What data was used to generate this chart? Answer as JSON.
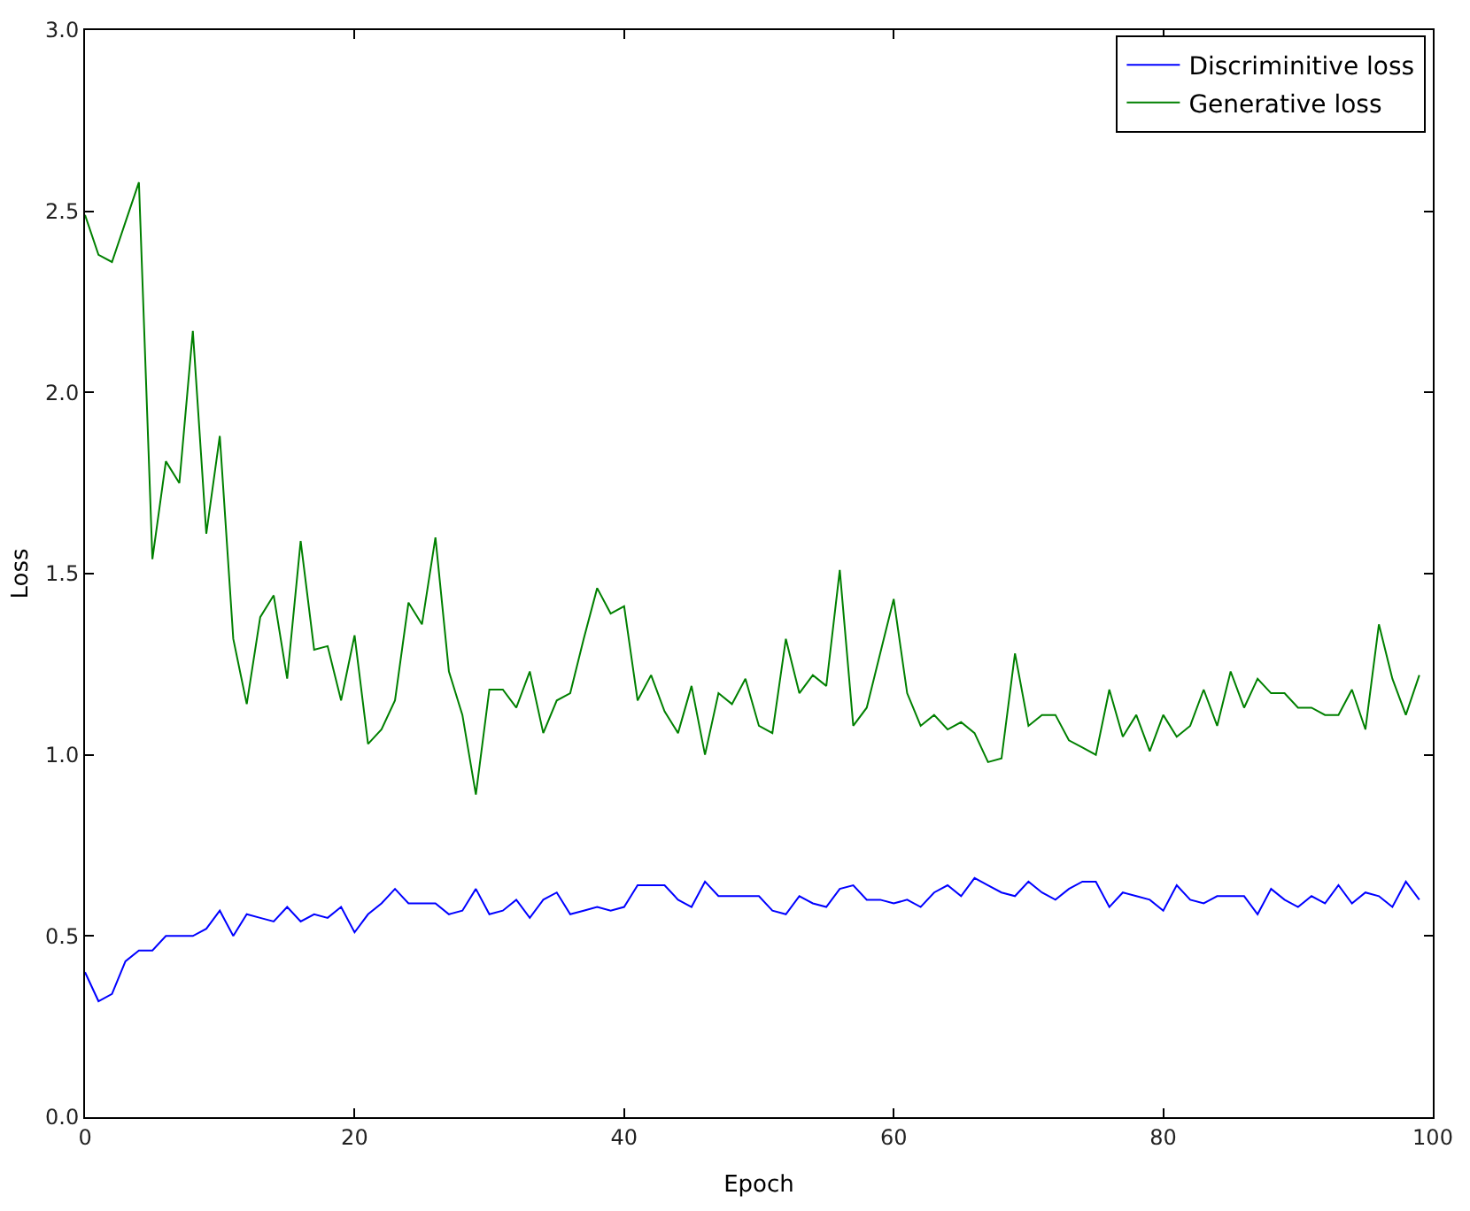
{
  "chart_data": {
    "type": "line",
    "xlabel": "Epoch",
    "ylabel": "Loss",
    "x": [
      0,
      1,
      2,
      3,
      4,
      5,
      6,
      7,
      8,
      9,
      10,
      11,
      12,
      13,
      14,
      15,
      16,
      17,
      18,
      19,
      20,
      21,
      22,
      23,
      24,
      25,
      26,
      27,
      28,
      29,
      30,
      31,
      32,
      33,
      34,
      35,
      36,
      37,
      38,
      39,
      40,
      41,
      42,
      43,
      44,
      45,
      46,
      47,
      48,
      49,
      50,
      51,
      52,
      53,
      54,
      55,
      56,
      57,
      58,
      59,
      60,
      61,
      62,
      63,
      64,
      65,
      66,
      67,
      68,
      69,
      70,
      71,
      72,
      73,
      74,
      75,
      76,
      77,
      78,
      79,
      80,
      81,
      82,
      83,
      84,
      85,
      86,
      87,
      88,
      89,
      90,
      91,
      92,
      93,
      94,
      95,
      96,
      97,
      98,
      99
    ],
    "series": [
      {
        "name": "Discriminitive loss",
        "color": "#0000ff",
        "values": [
          0.4,
          0.32,
          0.34,
          0.43,
          0.46,
          0.46,
          0.5,
          0.5,
          0.5,
          0.52,
          0.57,
          0.5,
          0.56,
          0.55,
          0.54,
          0.58,
          0.54,
          0.56,
          0.55,
          0.58,
          0.51,
          0.56,
          0.59,
          0.63,
          0.59,
          0.59,
          0.59,
          0.56,
          0.57,
          0.63,
          0.56,
          0.57,
          0.6,
          0.55,
          0.6,
          0.62,
          0.56,
          0.57,
          0.58,
          0.57,
          0.58,
          0.64,
          0.64,
          0.64,
          0.6,
          0.58,
          0.65,
          0.61,
          0.61,
          0.61,
          0.61,
          0.57,
          0.56,
          0.61,
          0.59,
          0.58,
          0.63,
          0.64,
          0.6,
          0.6,
          0.59,
          0.6,
          0.58,
          0.62,
          0.64,
          0.61,
          0.66,
          0.64,
          0.62,
          0.61,
          0.65,
          0.62,
          0.6,
          0.63,
          0.65,
          0.65,
          0.58,
          0.62,
          0.61,
          0.6,
          0.57,
          0.64,
          0.6,
          0.59,
          0.61,
          0.61,
          0.61,
          0.56,
          0.63,
          0.6,
          0.58,
          0.61,
          0.59,
          0.64,
          0.59,
          0.62,
          0.61,
          0.58,
          0.65,
          0.6
        ]
      },
      {
        "name": "Generative loss",
        "color": "#008000",
        "values": [
          2.49,
          2.38,
          2.36,
          2.47,
          2.58,
          1.54,
          1.81,
          1.75,
          2.17,
          1.61,
          1.88,
          1.32,
          1.14,
          1.38,
          1.44,
          1.21,
          1.59,
          1.29,
          1.3,
          1.15,
          1.33,
          1.03,
          1.07,
          1.15,
          1.42,
          1.36,
          1.6,
          1.23,
          1.11,
          0.89,
          1.18,
          1.18,
          1.13,
          1.23,
          1.06,
          1.15,
          1.17,
          1.32,
          1.46,
          1.39,
          1.41,
          1.15,
          1.22,
          1.12,
          1.06,
          1.19,
          1.0,
          1.17,
          1.14,
          1.21,
          1.08,
          1.06,
          1.32,
          1.17,
          1.22,
          1.19,
          1.51,
          1.08,
          1.13,
          1.28,
          1.43,
          1.17,
          1.08,
          1.11,
          1.07,
          1.09,
          1.06,
          0.98,
          0.99,
          1.28,
          1.08,
          1.11,
          1.11,
          1.04,
          1.02,
          1.0,
          1.18,
          1.05,
          1.11,
          1.01,
          1.11,
          1.05,
          1.08,
          1.18,
          1.08,
          1.23,
          1.13,
          1.21,
          1.17,
          1.17,
          1.13,
          1.13,
          1.11,
          1.11,
          1.18,
          1.07,
          1.36,
          1.21,
          1.11,
          1.22
        ]
      }
    ],
    "xlim": [
      0,
      100
    ],
    "xticks": [
      0,
      20,
      40,
      60,
      80,
      100
    ],
    "ylim": [
      0,
      3
    ],
    "yticks": [
      {
        "value": 0,
        "label": "0.0"
      },
      {
        "value": 0.5,
        "label": "0.5"
      },
      {
        "value": 1,
        "label": "1.0"
      },
      {
        "value": 1.5,
        "label": "1.5"
      },
      {
        "value": 2,
        "label": "2.0"
      },
      {
        "value": 2.5,
        "label": "2.5"
      },
      {
        "value": 3,
        "label": "3.0"
      }
    ],
    "legend": "top right",
    "marker": "none",
    "line_style": "solid"
  }
}
